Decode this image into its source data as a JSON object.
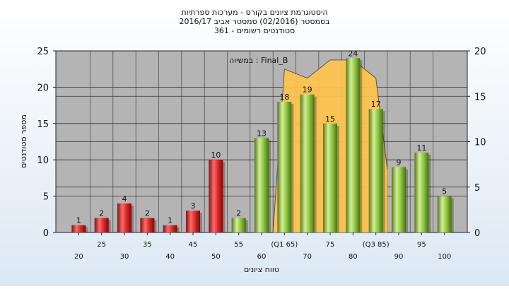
{
  "chart_data": {
    "type": "bar",
    "title_lines": [
      "היסטוגרמת ציונים בקורס - מערכות ספרתיות",
      "בסמסטר  (02/2016)  סמסטר אביב 2016/17",
      "סטודנטים רשומים - 361"
    ],
    "xlabel": "טווח ציונים",
    "ylabel": "מספר סטודנטים",
    "annotation": "במשיוה : Final_B",
    "x_tick_labels": [
      "20",
      "25",
      "30",
      "35",
      "40",
      "45",
      "50",
      "55",
      "60",
      "(Q1 65)",
      "70",
      "75",
      "80",
      "(Q3 85)",
      "90",
      "95",
      "100"
    ],
    "ylim": [
      0,
      25
    ],
    "y_ticks": [
      0,
      5,
      10,
      15,
      20,
      25
    ],
    "y2lim": [
      0,
      20
    ],
    "y2_ticks": [
      0,
      5,
      10,
      15,
      20
    ],
    "bars": [
      {
        "x": 20,
        "value": 1,
        "color": "red"
      },
      {
        "x": 25,
        "value": 2,
        "color": "red"
      },
      {
        "x": 30,
        "value": 4,
        "color": "red"
      },
      {
        "x": 35,
        "value": 2,
        "color": "red"
      },
      {
        "x": 40,
        "value": 1,
        "color": "red"
      },
      {
        "x": 45,
        "value": 3,
        "color": "red"
      },
      {
        "x": 50,
        "value": 10,
        "color": "red"
      },
      {
        "x": 55,
        "value": 2,
        "color": "green"
      },
      {
        "x": 60,
        "value": 13,
        "color": "green"
      },
      {
        "x": 65,
        "value": 18,
        "color": "green"
      },
      {
        "x": 70,
        "value": 19,
        "color": "green"
      },
      {
        "x": 75,
        "value": 15,
        "color": "green"
      },
      {
        "x": 80,
        "value": 24,
        "color": "green"
      },
      {
        "x": 85,
        "value": 17,
        "color": "green"
      },
      {
        "x": 90,
        "value": 9,
        "color": "green"
      },
      {
        "x": 95,
        "value": 11,
        "color": "green"
      },
      {
        "x": 100,
        "value": 5,
        "color": "green"
      }
    ],
    "background_area": {
      "x": [
        62.5,
        65,
        70,
        75,
        80,
        85,
        87.5
      ],
      "y2": [
        0,
        18,
        17,
        19,
        19,
        17,
        7
      ]
    },
    "colors": {
      "plot_bg": "#b4b4b4",
      "area": "#ffc34d",
      "bar_red": "#d42a2a",
      "bar_green": "#8cc63f"
    }
  }
}
